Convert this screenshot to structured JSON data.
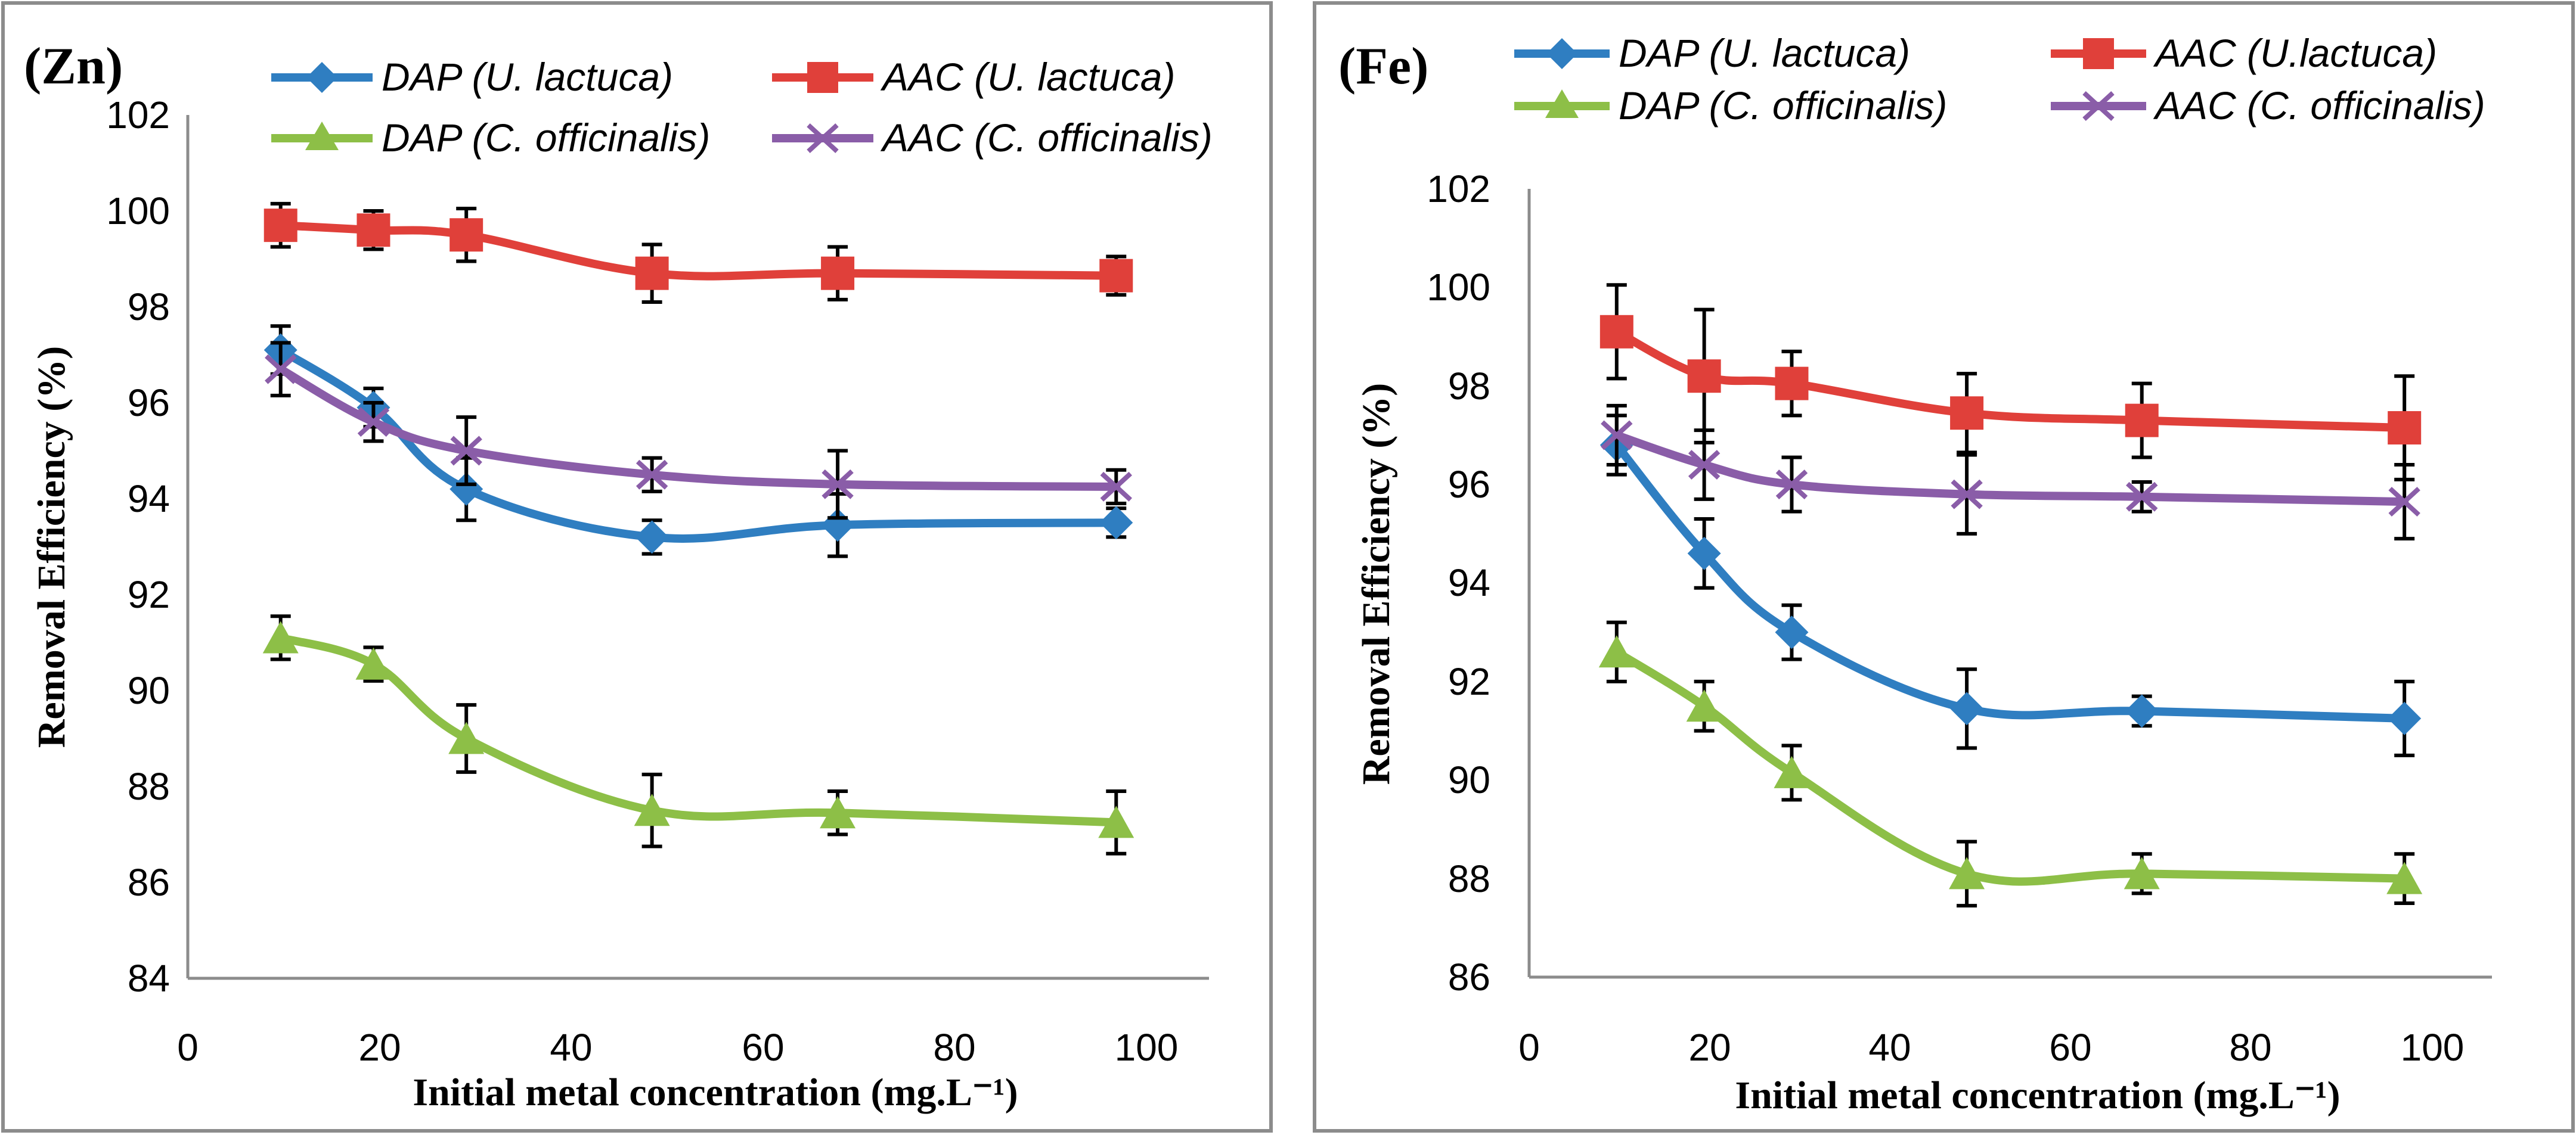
{
  "colors": {
    "dap_ulactuca": "#2F7EC1",
    "aac_ulactuca": "#E0403A",
    "dap_cofficinalis": "#8DBF47",
    "aac_cofficinalis": "#8A5DA8",
    "frame": "#8C8C8C"
  },
  "chart_data": [
    {
      "type": "line",
      "panel_label": "(Zn)",
      "xlabel": "Initial metal concentration (mg.L⁻¹)",
      "ylabel": "Removal Efficiency (%)",
      "xlim": [
        0,
        110
      ],
      "ylim": [
        84,
        102
      ],
      "xticks": [
        0,
        20,
        40,
        60,
        80,
        100
      ],
      "yticks": [
        84,
        86,
        88,
        90,
        92,
        94,
        96,
        98,
        100,
        102
      ],
      "x": [
        10,
        20,
        30,
        50,
        70,
        100
      ],
      "legend_position": "top",
      "series": [
        {
          "name": "DAP (U. lactuca)",
          "marker": "diamond",
          "color_key": "dap_ulactuca",
          "values": [
            97.1,
            95.9,
            94.2,
            93.2,
            93.45,
            93.5
          ],
          "errors": [
            0.5,
            0.4,
            0.65,
            0.35,
            0.65,
            0.3
          ]
        },
        {
          "name": "AAC (U. lactuca)",
          "marker": "square",
          "color_key": "aac_ulactuca",
          "values": [
            99.7,
            99.6,
            99.5,
            98.7,
            98.7,
            98.65
          ],
          "errors": [
            0.45,
            0.4,
            0.55,
            0.6,
            0.55,
            0.4
          ]
        },
        {
          "name": "DAP (C. officinalis)",
          "marker": "triangle",
          "color_key": "dap_cofficinalis",
          "values": [
            91.1,
            90.55,
            89.0,
            87.5,
            87.45,
            87.25
          ],
          "errors": [
            0.45,
            0.35,
            0.7,
            0.75,
            0.45,
            0.65
          ]
        },
        {
          "name": "AAC (C. officinalis)",
          "marker": "x",
          "color_key": "aac_cofficinalis",
          "values": [
            96.7,
            95.6,
            95.0,
            94.5,
            94.3,
            94.25
          ],
          "errors": [
            0.55,
            0.4,
            0.7,
            0.35,
            0.7,
            0.35
          ]
        }
      ]
    },
    {
      "type": "line",
      "panel_label": "(Fe)",
      "xlabel": "Initial metal concentration (mg.L⁻¹)",
      "ylabel": "Removal Efficiency (%)",
      "xlim": [
        0,
        110
      ],
      "ylim": [
        86,
        102
      ],
      "xticks": [
        0,
        20,
        40,
        60,
        80,
        100
      ],
      "yticks": [
        86,
        88,
        90,
        92,
        94,
        96,
        98,
        100,
        102
      ],
      "x": [
        10,
        20,
        30,
        50,
        70,
        100
      ],
      "legend_position": "top",
      "series": [
        {
          "name": "DAP (U. lactuca)",
          "marker": "diamond",
          "color_key": "dap_ulactuca",
          "values": [
            96.8,
            94.6,
            93.0,
            91.45,
            91.4,
            91.25
          ],
          "errors": [
            0.6,
            0.7,
            0.55,
            0.8,
            0.3,
            0.75
          ]
        },
        {
          "name": "AAC (U.lactuca)",
          "marker": "square",
          "color_key": "aac_ulactuca",
          "values": [
            99.1,
            98.2,
            98.05,
            97.45,
            97.3,
            97.15
          ],
          "errors": [
            0.95,
            1.35,
            0.65,
            0.8,
            0.75,
            1.05
          ]
        },
        {
          "name": "DAP (C. officinalis)",
          "marker": "triangle",
          "color_key": "dap_cofficinalis",
          "values": [
            92.6,
            91.5,
            90.15,
            88.1,
            88.1,
            88.0
          ],
          "errors": [
            0.6,
            0.5,
            0.55,
            0.65,
            0.4,
            0.5
          ]
        },
        {
          "name": "AAC (C. officinalis)",
          "marker": "x",
          "color_key": "aac_cofficinalis",
          "values": [
            97.0,
            96.4,
            96.0,
            95.8,
            95.75,
            95.65
          ],
          "errors": [
            0.6,
            0.7,
            0.55,
            0.8,
            0.3,
            0.75
          ]
        }
      ]
    }
  ]
}
